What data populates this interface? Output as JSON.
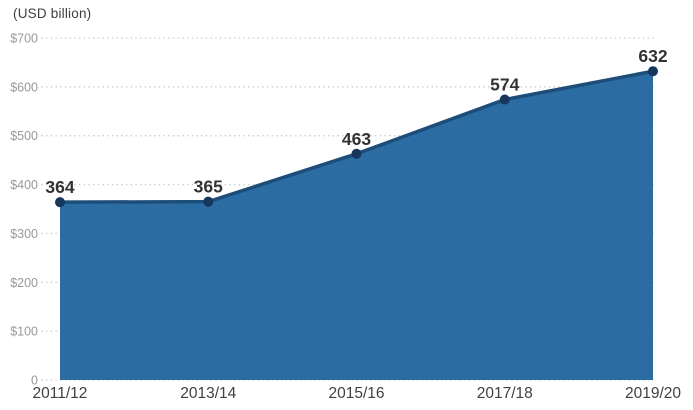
{
  "chart_data": {
    "type": "area",
    "title": "(USD billion)",
    "categories": [
      "2011/12",
      "2013/14",
      "2015/16",
      "2017/18",
      "2019/20"
    ],
    "values": [
      364,
      365,
      463,
      574,
      632
    ],
    "ylim": [
      0,
      700
    ],
    "yticks": [
      {
        "value": 700,
        "label": "$700"
      },
      {
        "value": 600,
        "label": "$600"
      },
      {
        "value": 500,
        "label": "$500"
      },
      {
        "value": 400,
        "label": "$400"
      },
      {
        "value": 300,
        "label": "$300"
      },
      {
        "value": 200,
        "label": "$200"
      },
      {
        "value": 100,
        "label": "$100"
      },
      {
        "value": 0,
        "label": "0"
      }
    ],
    "grid": "horizontal-dotted",
    "legend": "none",
    "colors": {
      "area_fill": "#2B6CA3",
      "line": "#1D4E7A",
      "marker": "#16365C",
      "point_label": "#333333",
      "ytick_label": "#999999",
      "xtick_label": "#404040",
      "gridline": "#CFCFCF",
      "title": "#404040",
      "background": "#FFFFFF"
    }
  }
}
